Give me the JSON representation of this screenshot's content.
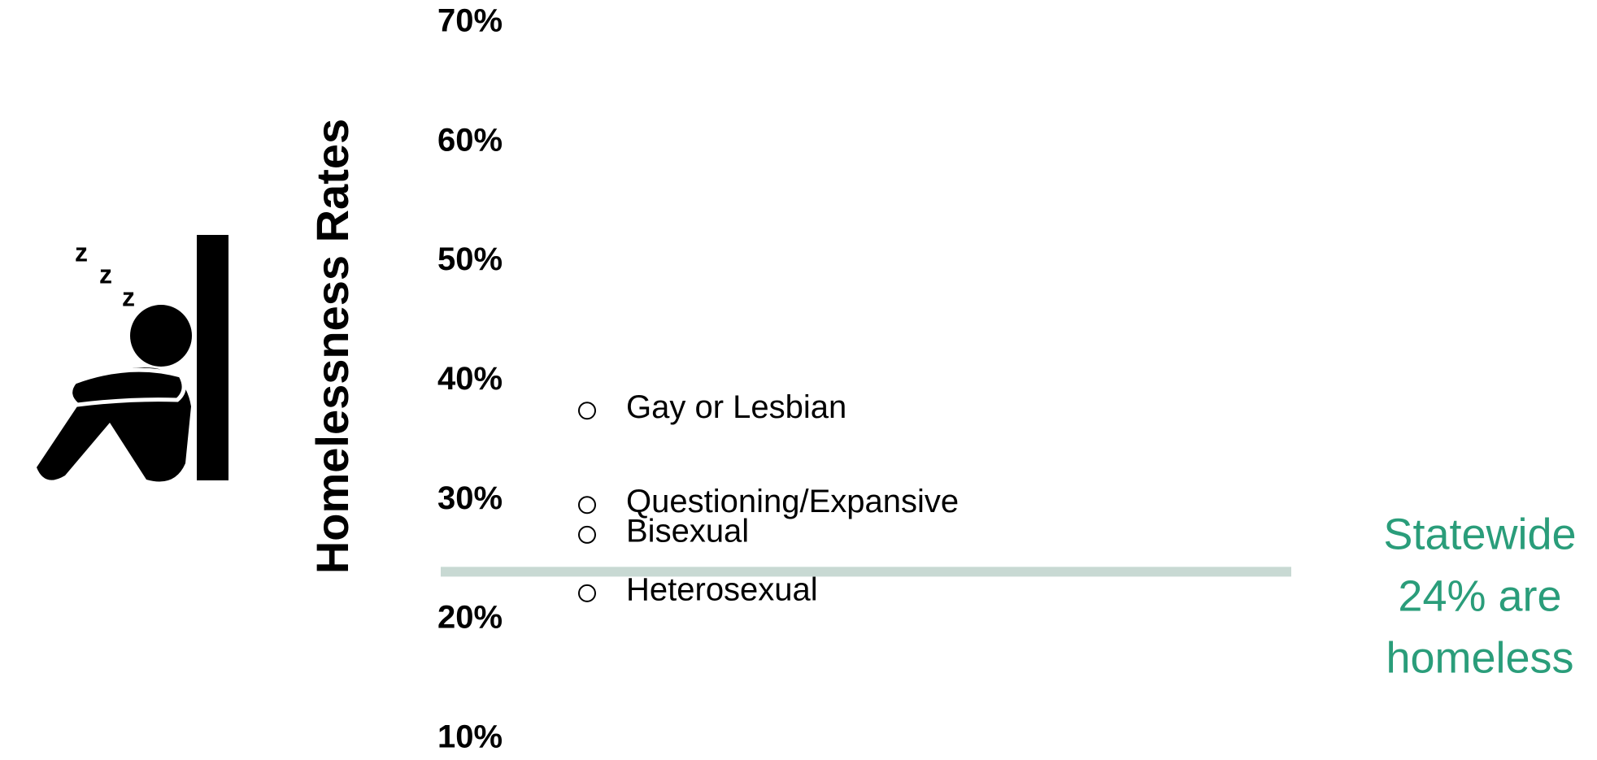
{
  "chart_data": {
    "type": "scatter",
    "y_axis_label": "Homelessness  Rates",
    "categories": [
      "Gay or Lesbian",
      "Questioning/Expansive",
      "Bisexual",
      "Heterosexual"
    ],
    "values": [
      37.5,
      29.6,
      27.1,
      22.2
    ],
    "color": "#000000",
    "ylim": [
      10,
      70
    ],
    "yticks": [
      {
        "value": 10,
        "label": "10%"
      },
      {
        "value": 20,
        "label": "20%"
      },
      {
        "value": 30,
        "label": "30%"
      },
      {
        "value": 40,
        "label": "40%"
      },
      {
        "value": 50,
        "label": "50%"
      },
      {
        "value": 60,
        "label": "60%"
      },
      {
        "value": 70,
        "label": "70%"
      }
    ],
    "reference_line": {
      "value": 24,
      "label": [
        "Statewide",
        "24% are",
        "homeless"
      ],
      "line_color": "#c8d9d3",
      "text_color": "#2a9d7a"
    }
  }
}
